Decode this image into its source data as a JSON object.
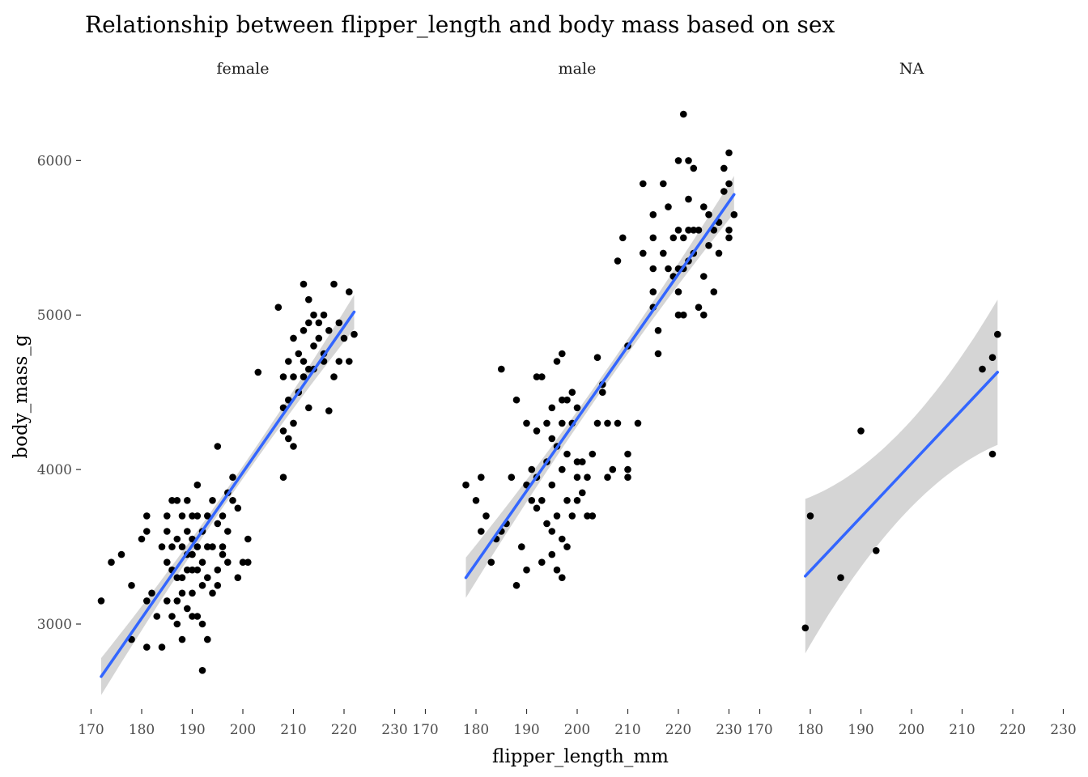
{
  "chart_data": {
    "type": "scatter",
    "title": "Relationship between flipper_length and body mass based on sex",
    "xlabel": "flipper_length_mm",
    "ylabel": "body_mass_g",
    "xlim": [
      168,
      232
    ],
    "ylim": [
      2450,
      6400
    ],
    "x_ticks": [
      170,
      180,
      190,
      200,
      210,
      220,
      230
    ],
    "y_ticks": [
      3000,
      4000,
      5000,
      6000
    ],
    "grid": false,
    "smoother": {
      "method": "lm",
      "color": "#3366ff",
      "se_band": true
    },
    "facets": [
      {
        "label": "female",
        "fit": {
          "x0": 172,
          "y0": 2660,
          "x1": 222,
          "y1": 5020,
          "se0": 120,
          "se_mid": 40,
          "se1": 110
        },
        "points": [
          [
            172,
            3150
          ],
          [
            174,
            3400
          ],
          [
            176,
            3450
          ],
          [
            178,
            3250
          ],
          [
            178,
            2900
          ],
          [
            180,
            3550
          ],
          [
            181,
            3700
          ],
          [
            181,
            3600
          ],
          [
            181,
            3150
          ],
          [
            181,
            2850
          ],
          [
            182,
            3200
          ],
          [
            183,
            3050
          ],
          [
            184,
            3500
          ],
          [
            184,
            2850
          ],
          [
            185,
            3700
          ],
          [
            185,
            3600
          ],
          [
            185,
            3400
          ],
          [
            185,
            3150
          ],
          [
            186,
            3500
          ],
          [
            186,
            3800
          ],
          [
            186,
            3350
          ],
          [
            186,
            3050
          ],
          [
            187,
            3800
          ],
          [
            187,
            3550
          ],
          [
            187,
            3300
          ],
          [
            187,
            3150
          ],
          [
            187,
            3000
          ],
          [
            188,
            3700
          ],
          [
            188,
            3500
          ],
          [
            188,
            3300
          ],
          [
            188,
            3200
          ],
          [
            188,
            2900
          ],
          [
            189,
            3800
          ],
          [
            189,
            3600
          ],
          [
            189,
            3450
          ],
          [
            189,
            3350
          ],
          [
            189,
            3100
          ],
          [
            190,
            3700
          ],
          [
            190,
            3550
          ],
          [
            190,
            3450
          ],
          [
            190,
            3350
          ],
          [
            190,
            3200
          ],
          [
            190,
            3050
          ],
          [
            191,
            3900
          ],
          [
            191,
            3700
          ],
          [
            191,
            3500
          ],
          [
            191,
            3350
          ],
          [
            191,
            3050
          ],
          [
            192,
            3600
          ],
          [
            192,
            3400
          ],
          [
            192,
            3250
          ],
          [
            192,
            3000
          ],
          [
            192,
            2700
          ],
          [
            193,
            3700
          ],
          [
            193,
            3500
          ],
          [
            193,
            3300
          ],
          [
            193,
            2900
          ],
          [
            194,
            3800
          ],
          [
            194,
            3500
          ],
          [
            194,
            3200
          ],
          [
            195,
            4150
          ],
          [
            195,
            3650
          ],
          [
            195,
            3350
          ],
          [
            195,
            3250
          ],
          [
            196,
            3700
          ],
          [
            196,
            3500
          ],
          [
            196,
            3450
          ],
          [
            197,
            3850
          ],
          [
            197,
            3600
          ],
          [
            197,
            3400
          ],
          [
            198,
            3950
          ],
          [
            198,
            3800
          ],
          [
            199,
            3750
          ],
          [
            199,
            3300
          ],
          [
            200,
            3400
          ],
          [
            201,
            3550
          ],
          [
            201,
            3400
          ],
          [
            203,
            4630
          ],
          [
            207,
            5050
          ],
          [
            208,
            4600
          ],
          [
            208,
            4400
          ],
          [
            208,
            4250
          ],
          [
            208,
            3950
          ],
          [
            209,
            4700
          ],
          [
            209,
            4450
          ],
          [
            209,
            4200
          ],
          [
            210,
            4850
          ],
          [
            210,
            4600
          ],
          [
            210,
            4300
          ],
          [
            210,
            4150
          ],
          [
            211,
            4750
          ],
          [
            211,
            4500
          ],
          [
            212,
            5200
          ],
          [
            212,
            4900
          ],
          [
            212,
            4700
          ],
          [
            212,
            4600
          ],
          [
            213,
            5100
          ],
          [
            213,
            4950
          ],
          [
            213,
            4650
          ],
          [
            213,
            4400
          ],
          [
            214,
            5000
          ],
          [
            214,
            4800
          ],
          [
            214,
            4650
          ],
          [
            215,
            4950
          ],
          [
            215,
            4850
          ],
          [
            216,
            5000
          ],
          [
            216,
            4750
          ],
          [
            216,
            4700
          ],
          [
            217,
            4900
          ],
          [
            217,
            4380
          ],
          [
            218,
            5200
          ],
          [
            218,
            4600
          ],
          [
            219,
            4950
          ],
          [
            219,
            4700
          ],
          [
            220,
            4850
          ],
          [
            221,
            5150
          ],
          [
            221,
            4700
          ],
          [
            222,
            4875
          ]
        ]
      },
      {
        "label": "male",
        "fit": {
          "x0": 178,
          "y0": 3300,
          "x1": 231,
          "y1": 5780,
          "se0": 130,
          "se_mid": 45,
          "se1": 120
        },
        "points": [
          [
            178,
            3900
          ],
          [
            180,
            3800
          ],
          [
            181,
            3950
          ],
          [
            181,
            3600
          ],
          [
            182,
            3700
          ],
          [
            183,
            3400
          ],
          [
            184,
            3550
          ],
          [
            185,
            4650
          ],
          [
            185,
            3600
          ],
          [
            186,
            3650
          ],
          [
            187,
            3950
          ],
          [
            188,
            4450
          ],
          [
            188,
            3250
          ],
          [
            189,
            3500
          ],
          [
            190,
            4300
          ],
          [
            190,
            3900
          ],
          [
            190,
            3350
          ],
          [
            191,
            4000
          ],
          [
            191,
            3800
          ],
          [
            192,
            4600
          ],
          [
            192,
            4250
          ],
          [
            192,
            3950
          ],
          [
            192,
            3750
          ],
          [
            193,
            4600
          ],
          [
            193,
            3800
          ],
          [
            193,
            3400
          ],
          [
            194,
            4300
          ],
          [
            194,
            4050
          ],
          [
            194,
            3650
          ],
          [
            195,
            4400
          ],
          [
            195,
            4200
          ],
          [
            195,
            3900
          ],
          [
            195,
            3600
          ],
          [
            195,
            3450
          ],
          [
            196,
            4700
          ],
          [
            196,
            4150
          ],
          [
            196,
            3700
          ],
          [
            196,
            3350
          ],
          [
            197,
            4750
          ],
          [
            197,
            4450
          ],
          [
            197,
            4300
          ],
          [
            197,
            4000
          ],
          [
            197,
            3550
          ],
          [
            197,
            3300
          ],
          [
            198,
            4450
          ],
          [
            198,
            4100
          ],
          [
            198,
            3800
          ],
          [
            198,
            3500
          ],
          [
            199,
            4500
          ],
          [
            199,
            4300
          ],
          [
            199,
            3700
          ],
          [
            200,
            4400
          ],
          [
            200,
            4050
          ],
          [
            200,
            3950
          ],
          [
            200,
            3800
          ],
          [
            201,
            4050
          ],
          [
            201,
            3850
          ],
          [
            202,
            3950
          ],
          [
            202,
            3700
          ],
          [
            203,
            4100
          ],
          [
            203,
            3700
          ],
          [
            204,
            4725
          ],
          [
            204,
            4300
          ],
          [
            205,
            4550
          ],
          [
            205,
            4500
          ],
          [
            206,
            4300
          ],
          [
            206,
            3950
          ],
          [
            207,
            4000
          ],
          [
            208,
            5350
          ],
          [
            208,
            4300
          ],
          [
            209,
            5500
          ],
          [
            210,
            4800
          ],
          [
            210,
            4100
          ],
          [
            210,
            4000
          ],
          [
            210,
            3950
          ],
          [
            212,
            4300
          ],
          [
            213,
            5850
          ],
          [
            213,
            5400
          ],
          [
            215,
            5650
          ],
          [
            215,
            5500
          ],
          [
            215,
            5300
          ],
          [
            215,
            5150
          ],
          [
            215,
            5050
          ],
          [
            216,
            4900
          ],
          [
            216,
            4750
          ],
          [
            217,
            5850
          ],
          [
            217,
            5400
          ],
          [
            218,
            5700
          ],
          [
            218,
            5300
          ],
          [
            219,
            5500
          ],
          [
            219,
            5250
          ],
          [
            220,
            6000
          ],
          [
            220,
            5550
          ],
          [
            220,
            5300
          ],
          [
            220,
            5150
          ],
          [
            220,
            5000
          ],
          [
            221,
            6300
          ],
          [
            221,
            5500
          ],
          [
            221,
            5300
          ],
          [
            221,
            5000
          ],
          [
            222,
            6000
          ],
          [
            222,
            5750
          ],
          [
            222,
            5550
          ],
          [
            222,
            5350
          ],
          [
            223,
            5950
          ],
          [
            223,
            5550
          ],
          [
            223,
            5400
          ],
          [
            224,
            5550
          ],
          [
            224,
            5050
          ],
          [
            225,
            5700
          ],
          [
            225,
            5250
          ],
          [
            225,
            5000
          ],
          [
            226,
            5650
          ],
          [
            226,
            5450
          ],
          [
            227,
            5550
          ],
          [
            227,
            5150
          ],
          [
            228,
            5400
          ],
          [
            228,
            5600
          ],
          [
            229,
            5950
          ],
          [
            229,
            5800
          ],
          [
            230,
            6050
          ],
          [
            230,
            5850
          ],
          [
            230,
            5550
          ],
          [
            230,
            5500
          ],
          [
            231,
            5650
          ]
        ]
      },
      {
        "label": "NA",
        "fit": {
          "x0": 179,
          "y0": 3310,
          "x1": 217,
          "y1": 4630,
          "se0": 500,
          "se_mid": 280,
          "se1": 470
        },
        "points": [
          [
            179,
            2975
          ],
          [
            180,
            3700
          ],
          [
            186,
            3300
          ],
          [
            190,
            4250
          ],
          [
            193,
            3475
          ],
          [
            214,
            4650
          ],
          [
            216,
            4725
          ],
          [
            216,
            4100
          ],
          [
            217,
            4875
          ]
        ]
      }
    ]
  }
}
